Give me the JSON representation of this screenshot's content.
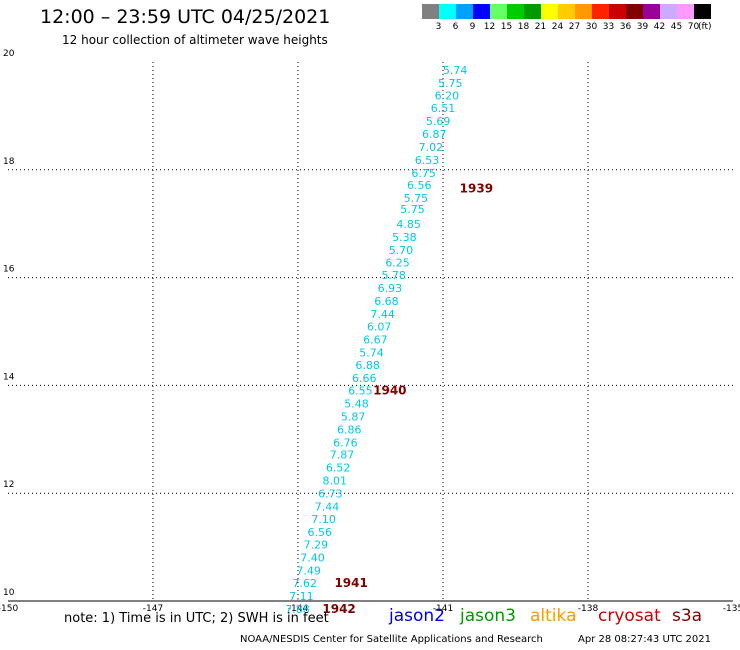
{
  "header": {
    "title": "12:00 – 23:59 UTC 04/25/2021",
    "subtitle": "12 hour collection of altimeter wave heights"
  },
  "legend": {
    "unit": "(ft)",
    "bins": [
      {
        "label": "3",
        "color": "#808080"
      },
      {
        "label": "6",
        "color": "#00ffff"
      },
      {
        "label": "9",
        "color": "#00a0ff"
      },
      {
        "label": "12",
        "color": "#0000ff"
      },
      {
        "label": "15",
        "color": "#66ff66"
      },
      {
        "label": "18",
        "color": "#00cc00"
      },
      {
        "label": "21",
        "color": "#009900"
      },
      {
        "label": "24",
        "color": "#ffff00"
      },
      {
        "label": "27",
        "color": "#ffcc00"
      },
      {
        "label": "30",
        "color": "#ff9900"
      },
      {
        "label": "33",
        "color": "#ff2200"
      },
      {
        "label": "36",
        "color": "#cc0000"
      },
      {
        "label": "39",
        "color": "#800000"
      },
      {
        "label": "42",
        "color": "#990099"
      },
      {
        "label": "45",
        "color": "#ccaaff"
      },
      {
        "label": "70",
        "color": "#ff99ff"
      },
      {
        "label": "",
        "color": "#000000"
      }
    ]
  },
  "chart_data": {
    "type": "scatter",
    "xlim": [
      -150,
      -135
    ],
    "ylim": [
      10,
      20
    ],
    "x_ticks": [
      "-150",
      "-147",
      "-144",
      "-141",
      "-138",
      "-135"
    ],
    "x_tick_values": [
      -150,
      -147,
      -144,
      -141,
      -138,
      -135
    ],
    "y_ticks": [
      "10",
      "12",
      "14",
      "16",
      "18",
      "20"
    ],
    "y_tick_values": [
      10,
      12,
      14,
      16,
      18,
      20
    ],
    "grid": true,
    "point_color": "#00c8e8",
    "time_color": "#800000",
    "points": [
      {
        "lon": -140.75,
        "lat": 19.78,
        "label": "5.74"
      },
      {
        "lon": -140.85,
        "lat": 19.54,
        "label": "5.75"
      },
      {
        "lon": -140.92,
        "lat": 19.3,
        "label": "6.20"
      },
      {
        "lon": -141.0,
        "lat": 19.07,
        "label": "6.51"
      },
      {
        "lon": -141.1,
        "lat": 18.83,
        "label": "5.69"
      },
      {
        "lon": -141.18,
        "lat": 18.59,
        "label": "6.87"
      },
      {
        "lon": -141.25,
        "lat": 18.35,
        "label": "7.02"
      },
      {
        "lon": -141.33,
        "lat": 18.11,
        "label": "6.53"
      },
      {
        "lon": -141.4,
        "lat": 17.87,
        "label": "6.75"
      },
      {
        "lon": -141.49,
        "lat": 17.64,
        "label": "6.56"
      },
      {
        "lon": -141.56,
        "lat": 17.4,
        "label": "5.75"
      },
      {
        "lon": -141.63,
        "lat": 17.2,
        "label": "5.75"
      },
      {
        "lon": -141.71,
        "lat": 16.92,
        "label": "4.85"
      },
      {
        "lon": -141.8,
        "lat": 16.68,
        "label": "5.38"
      },
      {
        "lon": -141.87,
        "lat": 16.44,
        "label": "5.70"
      },
      {
        "lon": -141.94,
        "lat": 16.21,
        "label": "6.25"
      },
      {
        "lon": -142.02,
        "lat": 15.97,
        "label": "5.78"
      },
      {
        "lon": -142.1,
        "lat": 15.73,
        "label": "6.93"
      },
      {
        "lon": -142.17,
        "lat": 15.49,
        "label": "6.68"
      },
      {
        "lon": -142.25,
        "lat": 15.25,
        "label": "7.44"
      },
      {
        "lon": -142.32,
        "lat": 15.02,
        "label": "6.07"
      },
      {
        "lon": -142.4,
        "lat": 14.78,
        "label": "6.67"
      },
      {
        "lon": -142.48,
        "lat": 14.54,
        "label": "5.74"
      },
      {
        "lon": -142.56,
        "lat": 14.3,
        "label": "6.88"
      },
      {
        "lon": -142.63,
        "lat": 14.06,
        "label": "6.66"
      },
      {
        "lon": -142.71,
        "lat": 13.83,
        "label": "6.55"
      },
      {
        "lon": -142.79,
        "lat": 13.59,
        "label": "5.48"
      },
      {
        "lon": -142.86,
        "lat": 13.35,
        "label": "5.87"
      },
      {
        "lon": -142.94,
        "lat": 13.11,
        "label": "6.86"
      },
      {
        "lon": -143.02,
        "lat": 12.87,
        "label": "6.76"
      },
      {
        "lon": -143.09,
        "lat": 12.64,
        "label": "7.87"
      },
      {
        "lon": -143.17,
        "lat": 12.4,
        "label": "6.52"
      },
      {
        "lon": -143.24,
        "lat": 12.16,
        "label": "8.01"
      },
      {
        "lon": -143.33,
        "lat": 11.92,
        "label": "6.73"
      },
      {
        "lon": -143.4,
        "lat": 11.68,
        "label": "7.44"
      },
      {
        "lon": -143.47,
        "lat": 11.45,
        "label": "7.10"
      },
      {
        "lon": -143.55,
        "lat": 11.21,
        "label": "6.56"
      },
      {
        "lon": -143.63,
        "lat": 10.97,
        "label": "7.29"
      },
      {
        "lon": -143.7,
        "lat": 10.73,
        "label": "7.40"
      },
      {
        "lon": -143.78,
        "lat": 10.49,
        "label": "7.49"
      },
      {
        "lon": -143.86,
        "lat": 10.26,
        "label": "7.62"
      },
      {
        "lon": -143.93,
        "lat": 10.02,
        "label": "7.11"
      },
      {
        "lon": -144.01,
        "lat": 9.78,
        "label": "7.88"
      }
    ],
    "times": [
      {
        "lon": -140.31,
        "lat": 17.58,
        "label": "1939"
      },
      {
        "lon": -142.1,
        "lat": 13.83,
        "label": "1940"
      },
      {
        "lon": -142.9,
        "lat": 10.26,
        "label": "1941"
      },
      {
        "lon": -143.15,
        "lat": 9.78,
        "label": "1942"
      }
    ]
  },
  "footer": {
    "note": "note: 1) Time is in UTC; 2) SWH is in feet",
    "satellites": [
      {
        "name": "jason2",
        "color": "#0000dd"
      },
      {
        "name": "jason3",
        "color": "#009900"
      },
      {
        "name": "altika",
        "color": "#ff9900"
      },
      {
        "name": "cryosat",
        "color": "#cc0000"
      },
      {
        "name": "s3a",
        "color": "#800000"
      }
    ],
    "credit": "NOAA/NESDIS Center for Satellite Applications and Research",
    "timestamp": "Apr 28 08:27:43 UTC 2021"
  }
}
